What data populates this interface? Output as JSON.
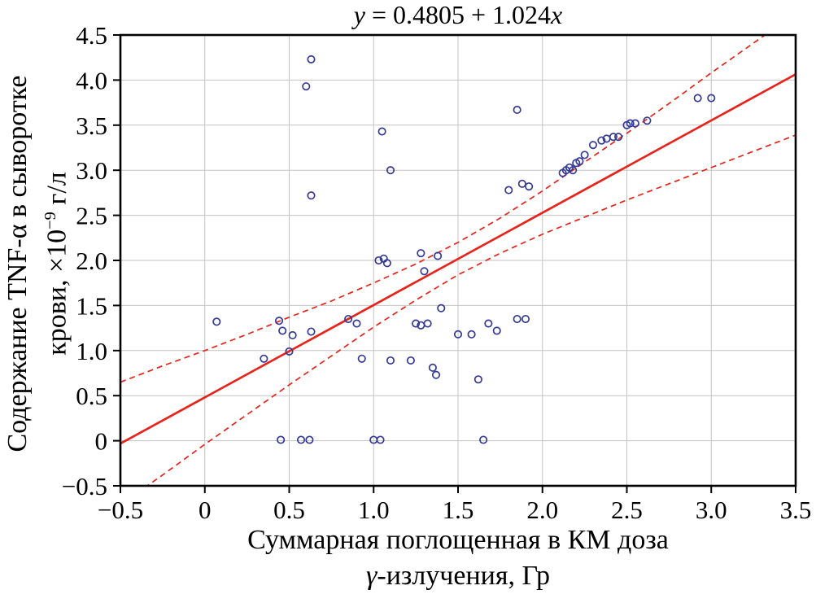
{
  "title": {
    "lhs": "y",
    "mid": " = 0.4805 + 1.024",
    "rhs": "x"
  },
  "axes": {
    "x_label_line1": "Суммарная поглощенная в КМ доза",
    "x_label_gamma": "γ",
    "x_label_line2_rest": "-излучения, Гр",
    "y_label_line1": "Содержание TNF-α в сыворотке",
    "y_label_line2_pre": "крови, ×10",
    "y_label_sup": "−9",
    "y_label_line2_post": " г/л"
  },
  "chart_data": {
    "type": "scatter",
    "title": "y = 0.4805 + 1.024x",
    "xlabel": "Суммарная поглощенная в КМ доза γ-излучения, Гр",
    "ylabel": "Содержание TNF-α в сыворотке крови, ×10⁻⁹ г/л",
    "xlim": [
      -0.5,
      3.5
    ],
    "ylim": [
      -0.5,
      4.5
    ],
    "grid": true,
    "legend": "none",
    "x_ticks": [
      {
        "v": -0.5,
        "label": "−0.5"
      },
      {
        "v": 0,
        "label": "0"
      },
      {
        "v": 0.5,
        "label": "0.5"
      },
      {
        "v": 1,
        "label": "1.0"
      },
      {
        "v": 1.5,
        "label": "1.5"
      },
      {
        "v": 2,
        "label": "2.0"
      },
      {
        "v": 2.5,
        "label": "2.5"
      },
      {
        "v": 3,
        "label": "3.0"
      },
      {
        "v": 3.5,
        "label": "3.5"
      }
    ],
    "y_ticks": [
      {
        "v": -0.5,
        "label": "−0.5"
      },
      {
        "v": 0,
        "label": "0"
      },
      {
        "v": 0.5,
        "label": "0.5"
      },
      {
        "v": 1,
        "label": "1.0"
      },
      {
        "v": 1.5,
        "label": "1.5"
      },
      {
        "v": 2,
        "label": "2.0"
      },
      {
        "v": 2.5,
        "label": "2.5"
      },
      {
        "v": 3,
        "label": "3.0"
      },
      {
        "v": 3.5,
        "label": "3.5"
      },
      {
        "v": 4,
        "label": "4.0"
      },
      {
        "v": 4.5,
        "label": "4.5"
      }
    ],
    "regression": {
      "equation": "y = 0.4805 + 1.024x",
      "intercept": 0.4805,
      "slope": 1.024
    },
    "points": [
      [
        0.07,
        1.32
      ],
      [
        0.35,
        0.91
      ],
      [
        0.44,
        1.33
      ],
      [
        0.46,
        1.22
      ],
      [
        0.45,
        0.01
      ],
      [
        0.5,
        0.99
      ],
      [
        0.52,
        1.17
      ],
      [
        0.57,
        0.01
      ],
      [
        0.62,
        0.01
      ],
      [
        0.6,
        3.93
      ],
      [
        0.63,
        4.23
      ],
      [
        0.63,
        2.72
      ],
      [
        0.63,
        1.21
      ],
      [
        0.85,
        1.35
      ],
      [
        0.9,
        1.3
      ],
      [
        0.93,
        0.91
      ],
      [
        1.0,
        0.01
      ],
      [
        1.04,
        0.01
      ],
      [
        1.03,
        2.0
      ],
      [
        1.06,
        2.02
      ],
      [
        1.08,
        1.97
      ],
      [
        1.05,
        3.43
      ],
      [
        1.1,
        3.0
      ],
      [
        1.1,
        0.89
      ],
      [
        1.22,
        0.89
      ],
      [
        1.25,
        1.3
      ],
      [
        1.28,
        1.28
      ],
      [
        1.32,
        1.3
      ],
      [
        1.28,
        2.08
      ],
      [
        1.3,
        1.88
      ],
      [
        1.38,
        2.05
      ],
      [
        1.35,
        0.81
      ],
      [
        1.37,
        0.73
      ],
      [
        1.4,
        1.47
      ],
      [
        1.5,
        1.18
      ],
      [
        1.58,
        1.18
      ],
      [
        1.62,
        0.68
      ],
      [
        1.65,
        0.01
      ],
      [
        1.68,
        1.3
      ],
      [
        1.73,
        1.22
      ],
      [
        1.8,
        2.78
      ],
      [
        1.85,
        3.67
      ],
      [
        1.85,
        1.35
      ],
      [
        1.9,
        1.35
      ],
      [
        1.88,
        2.85
      ],
      [
        1.92,
        2.82
      ],
      [
        2.12,
        2.97
      ],
      [
        2.14,
        3.0
      ],
      [
        2.16,
        3.03
      ],
      [
        2.18,
        3.0
      ],
      [
        2.2,
        3.08
      ],
      [
        2.22,
        3.1
      ],
      [
        2.25,
        3.17
      ],
      [
        2.3,
        3.28
      ],
      [
        2.35,
        3.33
      ],
      [
        2.38,
        3.35
      ],
      [
        2.42,
        3.37
      ],
      [
        2.45,
        3.37
      ],
      [
        2.5,
        3.5
      ],
      [
        2.52,
        3.52
      ],
      [
        2.55,
        3.52
      ],
      [
        2.62,
        3.55
      ],
      [
        2.92,
        3.8
      ],
      [
        3.0,
        3.8
      ]
    ],
    "confidence_band": {
      "x": [
        -0.5,
        -0.25,
        0.0,
        0.25,
        0.5,
        0.75,
        1.0,
        1.25,
        1.5,
        1.75,
        2.0,
        2.25,
        2.5,
        2.75,
        3.0,
        3.25,
        3.5
      ],
      "upper": [
        0.65,
        0.83,
        1.0,
        1.18,
        1.37,
        1.55,
        1.75,
        1.96,
        2.2,
        2.47,
        2.77,
        3.09,
        3.41,
        3.74,
        4.08,
        4.41,
        4.74
      ],
      "lower": [
        -0.71,
        -0.38,
        -0.04,
        0.29,
        0.62,
        0.94,
        1.26,
        1.56,
        1.84,
        2.08,
        2.29,
        2.48,
        2.67,
        2.85,
        3.03,
        3.21,
        3.39
      ]
    },
    "colors": {
      "point": "#343a95",
      "line": "#e8231a",
      "grid": "#c3c3c3",
      "frame": "#000000",
      "background": "#ffffff"
    }
  }
}
